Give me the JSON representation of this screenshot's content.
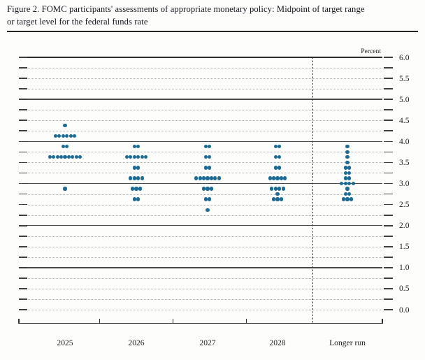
{
  "figure_title": {
    "line1": "Figure 2. FOMC participants' assessments of appropriate monetary policy: Midpoint of target range",
    "line2": "or target level for the federal funds rate"
  },
  "chart_data": {
    "type": "scatter",
    "title": "FOMC participants' assessments of appropriate monetary policy: Midpoint of target range or target level for the federal funds rate",
    "ylabel": "Percent",
    "ylim": [
      0.0,
      6.0
    ],
    "y_tick_labels": [
      "6.0",
      "5.5",
      "5.0",
      "4.5",
      "4.0",
      "3.5",
      "3.0",
      "2.5",
      "2.0",
      "1.5",
      "1.0",
      "0.5",
      "0.0"
    ],
    "y_label_step": 0.5,
    "grid_step": 0.25,
    "grid_style": "dotted at each quarter point, solid at whole percentages",
    "legend_position": "none",
    "categories": [
      "2025",
      "2026",
      "2027",
      "2028",
      "Longer run"
    ],
    "series": [
      {
        "category": "2025",
        "dots": [
          {
            "rate": 4.375,
            "count": 1
          },
          {
            "rate": 4.125,
            "count": 6
          },
          {
            "rate": 3.875,
            "count": 2
          },
          {
            "rate": 3.625,
            "count": 9
          },
          {
            "rate": 2.875,
            "count": 1
          }
        ]
      },
      {
        "category": "2026",
        "dots": [
          {
            "rate": 3.875,
            "count": 2
          },
          {
            "rate": 3.625,
            "count": 6
          },
          {
            "rate": 3.375,
            "count": 2
          },
          {
            "rate": 3.125,
            "count": 4
          },
          {
            "rate": 2.875,
            "count": 3
          },
          {
            "rate": 2.625,
            "count": 2
          }
        ]
      },
      {
        "category": "2027",
        "dots": [
          {
            "rate": 3.875,
            "count": 2
          },
          {
            "rate": 3.625,
            "count": 2
          },
          {
            "rate": 3.375,
            "count": 2
          },
          {
            "rate": 3.125,
            "count": 7
          },
          {
            "rate": 2.875,
            "count": 3
          },
          {
            "rate": 2.625,
            "count": 2
          },
          {
            "rate": 2.375,
            "count": 1
          }
        ]
      },
      {
        "category": "2028",
        "dots": [
          {
            "rate": 3.875,
            "count": 2
          },
          {
            "rate": 3.625,
            "count": 2
          },
          {
            "rate": 3.375,
            "count": 2
          },
          {
            "rate": 3.125,
            "count": 5
          },
          {
            "rate": 2.875,
            "count": 4
          },
          {
            "rate": 2.75,
            "count": 1
          },
          {
            "rate": 2.625,
            "count": 3
          }
        ]
      },
      {
        "category": "Longer run",
        "dots": [
          {
            "rate": 3.875,
            "count": 1
          },
          {
            "rate": 3.75,
            "count": 1
          },
          {
            "rate": 3.625,
            "count": 1
          },
          {
            "rate": 3.5,
            "count": 1
          },
          {
            "rate": 3.375,
            "count": 2
          },
          {
            "rate": 3.25,
            "count": 2
          },
          {
            "rate": 3.125,
            "count": 2
          },
          {
            "rate": 3.0,
            "count": 4
          },
          {
            "rate": 2.875,
            "count": 1
          },
          {
            "rate": 2.75,
            "count": 2
          },
          {
            "rate": 2.625,
            "count": 3
          }
        ]
      }
    ],
    "colors": {
      "dot": "#1c6b96",
      "solid_grid": "#4a4a4a",
      "dotted_grid": "#acacac",
      "frame": "#2b2b2b",
      "text": "#1d1d1d"
    }
  }
}
